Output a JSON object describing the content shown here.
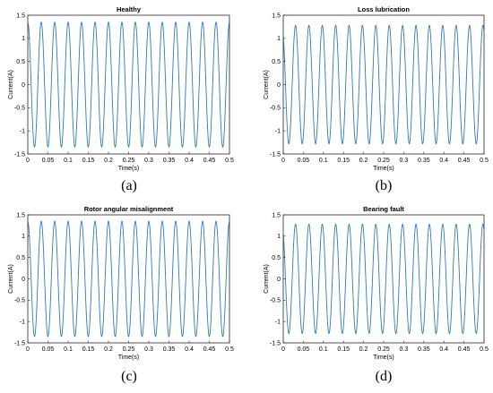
{
  "figure": {
    "line_color": "#2f7ab9",
    "panels": [
      {
        "caption": "(a)",
        "chart_data": {
          "type": "line",
          "title": "Healthy",
          "xlabel": "Time(s)",
          "ylabel": "Current(A)",
          "xlim": [
            0,
            0.5
          ],
          "ylim": [
            -1.5,
            1.5
          ],
          "xticks": [
            "0",
            "0.05",
            "0.1",
            "0.15",
            "0.2",
            "0.25",
            "0.3",
            "0.35",
            "0.4",
            "0.45",
            "0.5"
          ],
          "yticks": [
            "1.5",
            "1",
            "0.5",
            "0",
            "-0.5",
            "-1",
            "-1.5"
          ],
          "series": [
            {
              "function": "sine",
              "amplitude": 1.35,
              "frequency_hz": 30,
              "phase_deg": 90,
              "x_range": [
                0,
                0.5
              ]
            }
          ]
        }
      },
      {
        "caption": "(b)",
        "chart_data": {
          "type": "line",
          "title": "Loss lubrication",
          "xlabel": "Time(s)",
          "ylabel": "Current(A)",
          "xlim": [
            0,
            0.5
          ],
          "ylim": [
            -1.5,
            1.5
          ],
          "xticks": [
            "0",
            "0.05",
            "0.1",
            "0.15",
            "0.2",
            "0.25",
            "0.3",
            "0.35",
            "0.4",
            "0.45",
            "0.5"
          ],
          "yticks": [
            "1.5",
            "1",
            "0.5",
            "0",
            "-0.5",
            "-1",
            "-1.5"
          ],
          "series": [
            {
              "function": "sine",
              "amplitude": 1.28,
              "frequency_hz": 30,
              "phase_deg": 120,
              "x_range": [
                0,
                0.5
              ]
            }
          ]
        }
      },
      {
        "caption": "(c)",
        "chart_data": {
          "type": "line",
          "title": "Rotor angular misalignment",
          "xlabel": "Time(s)",
          "ylabel": "Current(A)",
          "xlim": [
            0,
            0.5
          ],
          "ylim": [
            -1.5,
            1.5
          ],
          "xticks": [
            "0",
            "0.05",
            "0.1",
            "0.15",
            "0.2",
            "0.25",
            "0.3",
            "0.35",
            "0.4",
            "0.45",
            "0.5"
          ],
          "yticks": [
            "1.5",
            "1",
            "0.5",
            "0",
            "-0.5",
            "-1",
            "-1.5"
          ],
          "series": [
            {
              "function": "sine",
              "amplitude": 1.35,
              "frequency_hz": 30,
              "phase_deg": 90,
              "x_range": [
                0,
                0.5
              ]
            }
          ]
        }
      },
      {
        "caption": "(d)",
        "chart_data": {
          "type": "line",
          "title": "Bearing fault",
          "xlabel": "Time(s)",
          "ylabel": "Current(A)",
          "xlim": [
            0,
            0.5
          ],
          "ylim": [
            -1.5,
            1.5
          ],
          "xticks": [
            "0",
            "0.05",
            "0.1",
            "0.15",
            "0.2",
            "0.25",
            "0.3",
            "0.35",
            "0.4",
            "0.45",
            "0.5"
          ],
          "yticks": [
            "1.5",
            "1",
            "0.5",
            "0",
            "-0.5",
            "-1",
            "-1.5"
          ],
          "series": [
            {
              "function": "sine",
              "amplitude": 1.28,
              "frequency_hz": 30,
              "phase_deg": 120,
              "x_range": [
                0,
                0.5
              ]
            }
          ]
        }
      }
    ]
  }
}
